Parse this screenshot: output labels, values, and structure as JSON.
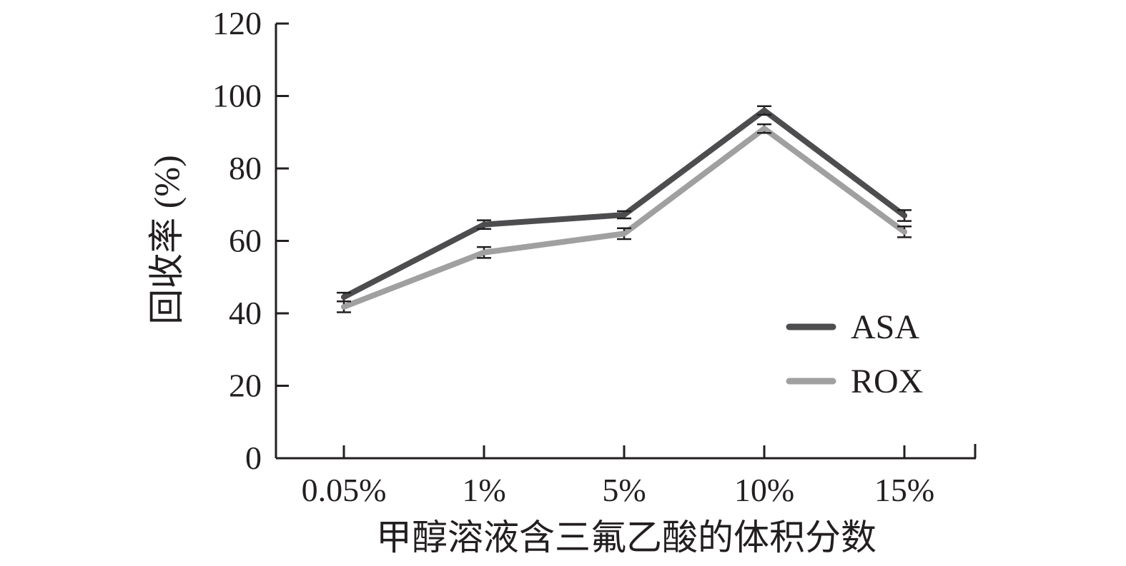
{
  "chart_data": {
    "type": "line",
    "title": "",
    "xlabel": "甲醇溶液含三氟乙酸的体积分数",
    "ylabel": "回收率 (%)",
    "categories": [
      "0.05%",
      "1%",
      "5%",
      "10%",
      "15%"
    ],
    "y_ticks": [
      "0",
      "20",
      "40",
      "60",
      "80",
      "100",
      "120"
    ],
    "ylim": [
      0,
      120
    ],
    "grid": false,
    "legend_position": "right",
    "series": [
      {
        "name": "ASA",
        "color": "#4d4d4f",
        "values": [
          44.5,
          64.5,
          67.2,
          96.0,
          67.0
        ],
        "errors": [
          1.2,
          1.2,
          1.0,
          1.2,
          1.5
        ]
      },
      {
        "name": "ROX",
        "color": "#a0a0a0",
        "values": [
          41.8,
          56.8,
          62.0,
          91.0,
          62.5
        ],
        "errors": [
          1.5,
          1.5,
          1.5,
          1.2,
          1.5
        ]
      }
    ]
  }
}
